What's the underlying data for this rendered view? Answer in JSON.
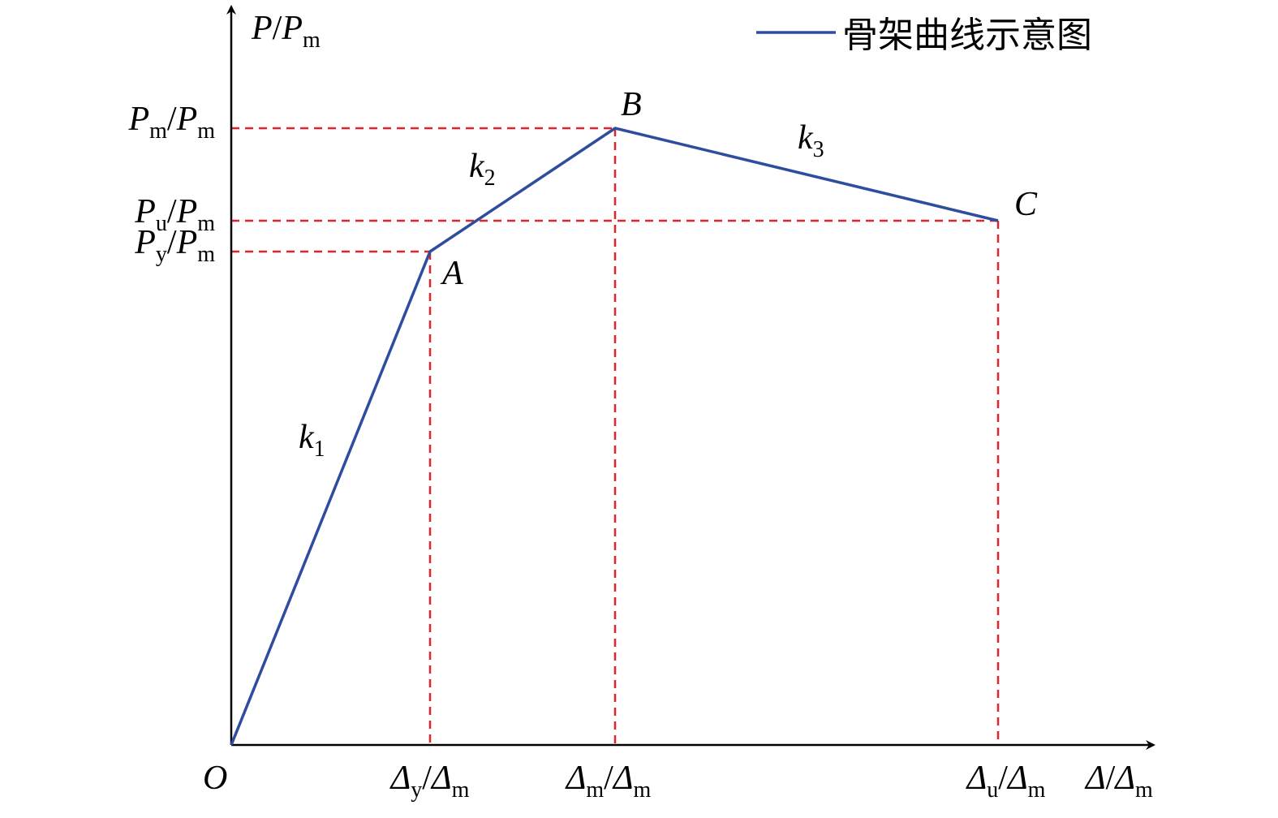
{
  "legend": "骨架曲线示意图",
  "y_axis_label": [
    "P",
    "/",
    "P",
    "m"
  ],
  "x_axis_label": [
    "Δ",
    "/",
    "Δ",
    "m"
  ],
  "origin": "O",
  "y_ticks": [
    [
      "P",
      "m",
      "/",
      "P",
      "m"
    ],
    [
      "P",
      "u",
      "/",
      "P",
      "m"
    ],
    [
      "P",
      "y",
      "/",
      "P",
      "m"
    ]
  ],
  "x_ticks": [
    [
      "Δ",
      "y",
      "/",
      "Δ",
      "m"
    ],
    [
      "Δ",
      "m",
      "/",
      "Δ",
      "m"
    ],
    [
      "Δ",
      "u",
      "/",
      "Δ",
      "m"
    ]
  ],
  "points": [
    "A",
    "B",
    "C"
  ],
  "slopes": [
    [
      "k",
      "1"
    ],
    [
      "k",
      "2"
    ],
    [
      "k",
      "3"
    ]
  ]
}
